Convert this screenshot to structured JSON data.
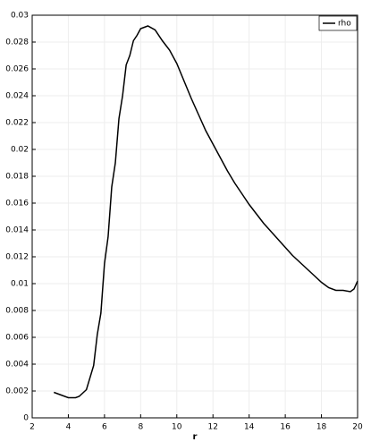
{
  "chart_data": {
    "type": "line",
    "xlabel": "r",
    "x": [
      3.2,
      3.6,
      4.0,
      4.4,
      4.6,
      5.0,
      5.4,
      5.6,
      5.8,
      6.0,
      6.2,
      6.4,
      6.6,
      6.8,
      7.0,
      7.2,
      7.4,
      7.6,
      7.8,
      8.0,
      8.4,
      8.8,
      9.2,
      9.6,
      10.0,
      10.4,
      10.8,
      11.2,
      11.6,
      12.0,
      12.4,
      12.8,
      13.2,
      13.6,
      14.0,
      14.4,
      14.8,
      15.2,
      15.6,
      16.0,
      16.4,
      16.8,
      17.2,
      17.6,
      18.0,
      18.4,
      18.8,
      19.2,
      19.6,
      19.8,
      20.0
    ],
    "series": [
      {
        "name": "rho",
        "color": "#000000",
        "values": [
          0.0019,
          0.0017,
          0.0015,
          0.0015,
          0.0016,
          0.0021,
          0.0039,
          0.0062,
          0.0078,
          0.0115,
          0.0135,
          0.0172,
          0.019,
          0.0223,
          0.024,
          0.0263,
          0.027,
          0.0281,
          0.0285,
          0.029,
          0.0292,
          0.0289,
          0.0281,
          0.0274,
          0.0264,
          0.0251,
          0.0238,
          0.0226,
          0.0214,
          0.0204,
          0.0194,
          0.0184,
          0.0175,
          0.0167,
          0.0159,
          0.0152,
          0.0145,
          0.0139,
          0.0133,
          0.0127,
          0.0121,
          0.0116,
          0.0111,
          0.0106,
          0.0101,
          0.0097,
          0.0095,
          0.0095,
          0.0094,
          0.0096,
          0.0102
        ]
      }
    ],
    "xlim": [
      2,
      20
    ],
    "xticks": [
      2,
      4,
      6,
      8,
      10,
      12,
      14,
      16,
      18,
      20
    ],
    "ylim": [
      0,
      0.03
    ],
    "yticks": [
      0,
      0.002,
      0.004,
      0.006,
      0.008,
      0.01,
      0.012,
      0.014,
      0.016,
      0.018,
      0.02,
      0.022,
      0.024,
      0.026,
      0.028,
      0.03
    ],
    "grid": true,
    "legend": "upper right"
  }
}
